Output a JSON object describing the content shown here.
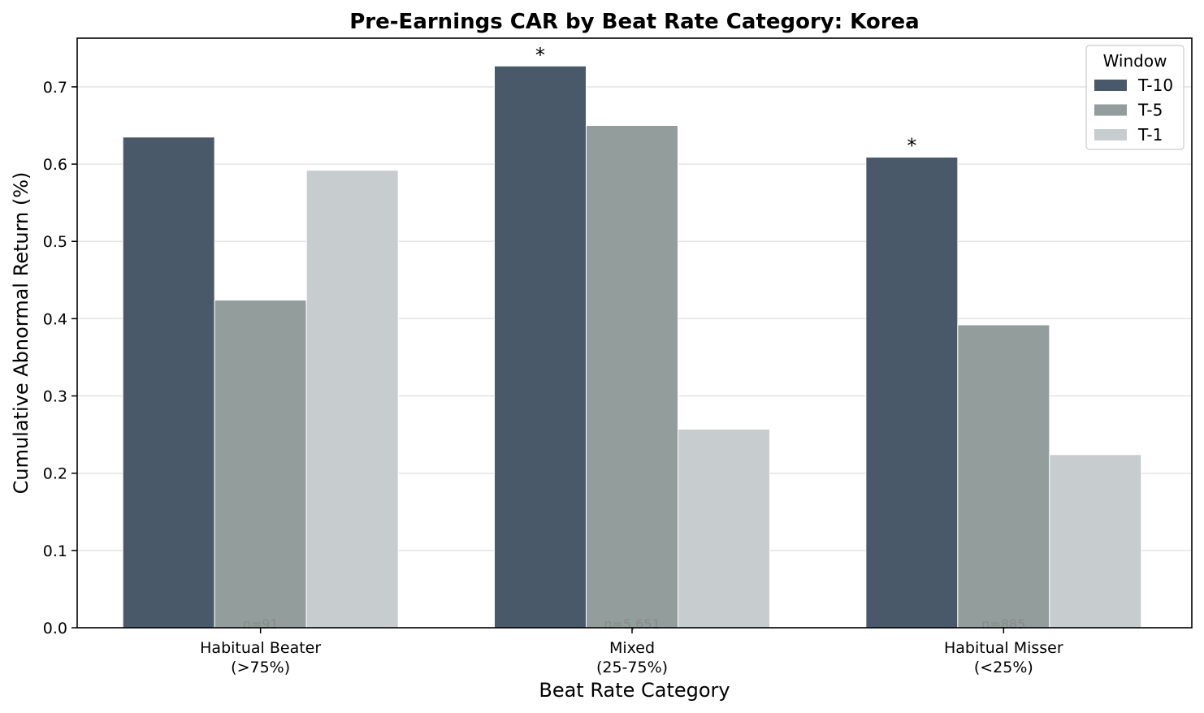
{
  "chart_data": {
    "type": "bar",
    "title": "Pre-Earnings CAR by Beat Rate Category: Korea",
    "xlabel": "Beat Rate Category",
    "ylabel": "Cumulative Abnormal Return (%)",
    "ylim": [
      0,
      0.763
    ],
    "yticks": [
      "0.0",
      "0.1",
      "0.2",
      "0.3",
      "0.4",
      "0.5",
      "0.6",
      "0.7"
    ],
    "ytick_values": [
      0.0,
      0.1,
      0.2,
      0.3,
      0.4,
      0.5,
      0.6,
      0.7
    ],
    "grid": "horizontal",
    "categories": [
      [
        "Habitual Beater",
        "(>75%)"
      ],
      [
        "Mixed",
        "(25-75%)"
      ],
      [
        "Habitual Misser",
        "(<25%)"
      ]
    ],
    "n_labels": [
      "n=91",
      "n=5,651",
      "n=885"
    ],
    "series": [
      {
        "name": "T-10",
        "color": "#4a5969",
        "values": [
          0.635,
          0.727,
          0.609
        ]
      },
      {
        "name": "T-5",
        "color": "#929d9c",
        "values": [
          0.424,
          0.65,
          0.392
        ]
      },
      {
        "name": "T-1",
        "color": "#c7cccf",
        "values": [
          0.592,
          0.257,
          0.224
        ]
      }
    ],
    "significance": [
      {
        "text": "*",
        "category_index": 1,
        "series_index": 0,
        "y": 0.745
      },
      {
        "text": "*",
        "category_index": 2,
        "series_index": 0,
        "y": 0.628
      }
    ],
    "legend": {
      "title": "Window",
      "placement": "top-right"
    }
  }
}
